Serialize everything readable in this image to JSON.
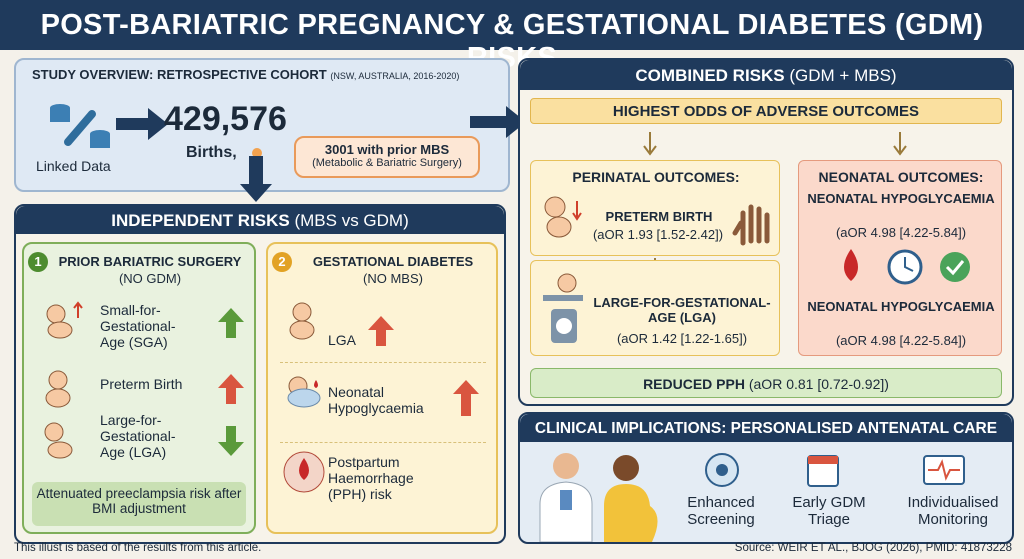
{
  "header": {
    "title": "POST-BARIATRIC PREGNANCY & GESTATIONAL DIABETES (GDM) RISKS"
  },
  "overview": {
    "heading": "STUDY OVERVIEW: RETROSPECTIVE COHORT",
    "subheading": "(NSW, AUSTRALIA, 2016-2020)",
    "source_label": "Linked Data",
    "births_count": "429,576",
    "births_label": "Births,",
    "callout_title": "3001 with prior MBS",
    "callout_note": "(Metabolic & Bariatric Surgery)"
  },
  "independent": {
    "heading": "INDEPENDENT RISKS",
    "subheading": "(MBS vs GDM)",
    "panels": [
      {
        "number": "1",
        "title": "PRIOR BARIATRIC SURGERY",
        "subtitle": "(NO GDM)",
        "items": [
          "Small-for-Gestational-Age (SGA)",
          "Preterm Birth",
          "Large-for-Gestational-Age (LGA)"
        ],
        "note": "Attenuated preeclampsia risk after BMI adjustment"
      },
      {
        "number": "2",
        "title": "GESTATIONAL DIABETES",
        "subtitle": "(NO MBS)",
        "items": [
          "LGA",
          "Neonatal Hypoglycaemia",
          "Postpartum Haemorrhage (PPH) risk"
        ]
      }
    ]
  },
  "combined": {
    "heading": "COMBINED RISKS",
    "subheading": "(GDM + MBS)",
    "banner": "HIGHEST ODDS OF ADVERSE OUTCOMES",
    "perinatal": {
      "title": "PERINATAL OUTCOMES:",
      "outcomes": [
        {
          "label": "PRETERM BIRTH",
          "stat": "(aOR 1.93 [1.52-2.42])"
        },
        {
          "label": "LARGE-FOR-GESTATIONAL-AGE (LGA)",
          "stat": "(aOR 1.42 [1.22-1.65])"
        }
      ]
    },
    "neonatal": {
      "title": "NEONATAL OUTCOMES:",
      "outcomes": [
        {
          "label": "NEONATAL HYPOGLYCAEMIA",
          "stat": "(aOR 4.98 [4.22-5.84])"
        },
        {
          "label": "NEONATAL HYPOGLYCAEMIA",
          "stat": "(aOR 4.98 [4.22-5.84])"
        }
      ]
    },
    "reduced": {
      "label": "REDUCED PPH",
      "stat": "(aOR 0.81 [0.72-0.92])"
    }
  },
  "clinical": {
    "heading": "CLINICAL IMPLICATIONS: PERSONALISED ANTENATAL CARE",
    "actions": [
      "Enhanced Screening",
      "Early GDM Triage",
      "Individualised Monitoring"
    ]
  },
  "footer": {
    "note": "This illust is based of the results from this article.",
    "source": "Source: WEIR ET AL., BJOG (2026), PMID: 41873228"
  }
}
